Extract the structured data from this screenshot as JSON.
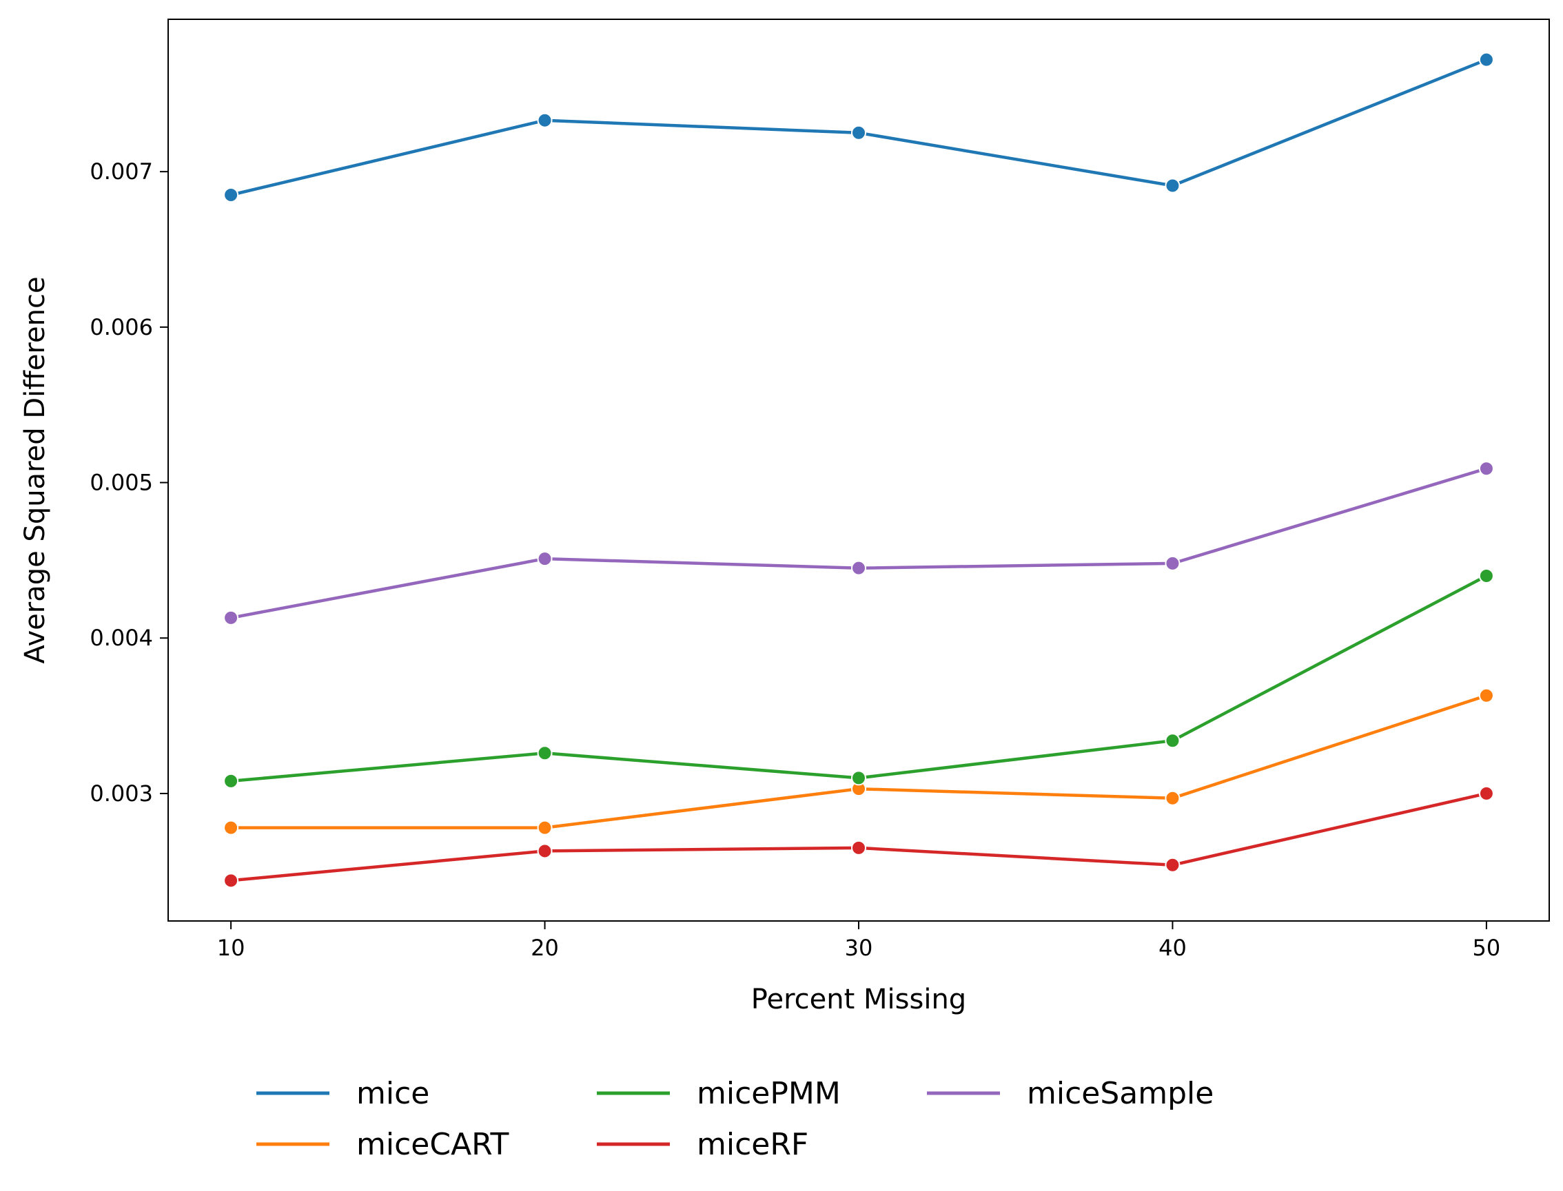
{
  "chart_data": {
    "type": "line",
    "title": "",
    "xlabel": "Percent Missing",
    "ylabel": "Average Squared Difference",
    "x": [
      10,
      20,
      30,
      40,
      50
    ],
    "xticks": [
      "10",
      "20",
      "30",
      "40",
      "50"
    ],
    "yticks": [
      0.003,
      0.004,
      0.005,
      0.006,
      0.007
    ],
    "ytick_labels": [
      "0.003",
      "0.004",
      "0.005",
      "0.006",
      "0.007"
    ],
    "xlim": [
      8,
      52
    ],
    "ylim": [
      0.00218,
      0.00798
    ],
    "grid": false,
    "legend_placement": "bottom-outside",
    "series": [
      {
        "name": "mice",
        "color": "#1f77b4",
        "values": [
          0.00685,
          0.00733,
          0.00725,
          0.00691,
          0.00772
        ]
      },
      {
        "name": "miceCART",
        "color": "#ff7f0e",
        "values": [
          0.00278,
          0.00278,
          0.00303,
          0.00297,
          0.00363
        ]
      },
      {
        "name": "micePMM",
        "color": "#2ca02c",
        "values": [
          0.00308,
          0.00326,
          0.0031,
          0.00334,
          0.0044
        ]
      },
      {
        "name": "miceRF",
        "color": "#d62728",
        "values": [
          0.00244,
          0.00263,
          0.00265,
          0.00254,
          0.003
        ]
      },
      {
        "name": "miceSample",
        "color": "#9467bd",
        "values": [
          0.00413,
          0.00451,
          0.00445,
          0.00448,
          0.00509
        ]
      }
    ]
  }
}
